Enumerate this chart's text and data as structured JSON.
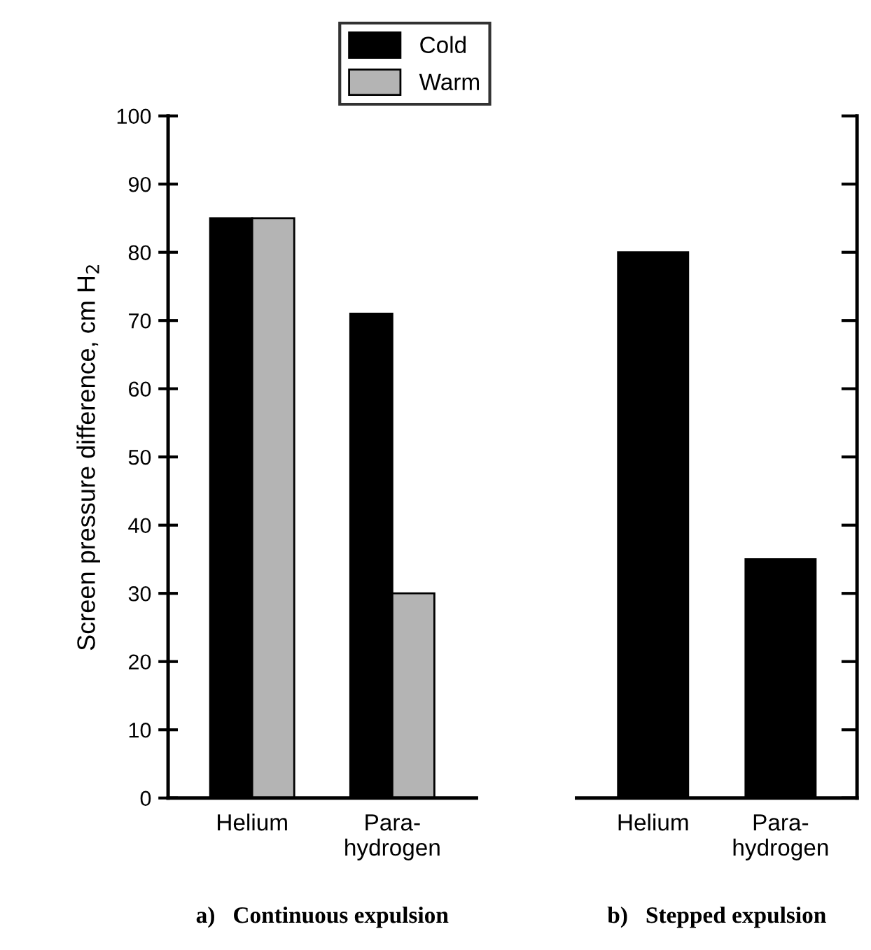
{
  "chart_data": [
    {
      "type": "bar",
      "title": "a)   Continuous expulsion",
      "ylabel": "Screen pressure difference, cm H$_{2}$",
      "categories": [
        "Helium",
        "Para-\nhydrogen"
      ],
      "series": [
        {
          "name": "Cold",
          "color": "#000000",
          "values": [
            85,
            71
          ]
        },
        {
          "name": "Warm",
          "color": "#b4b4b4",
          "values": [
            85,
            30
          ]
        }
      ],
      "ylim": [
        0,
        100
      ],
      "yticks": [
        0,
        10,
        20,
        30,
        40,
        50,
        60,
        70,
        80,
        90,
        100
      ],
      "legend": "top",
      "grid": false
    },
    {
      "type": "bar",
      "title": "b)   Stepped expulsion",
      "categories": [
        "Helium",
        "Para-\nhydrogen"
      ],
      "series": [
        {
          "color": "#000000",
          "values": [
            80,
            35
          ]
        }
      ],
      "ylim": [
        0,
        100
      ],
      "yticks": [
        {
          "value": 0,
          "label": null
        },
        {
          "value": 10,
          "label": null
        },
        {
          "value": 20,
          "label": null
        },
        {
          "value": 30,
          "label": null
        },
        {
          "value": 40,
          "label": null
        },
        {
          "value": 50,
          "label": null
        },
        {
          "value": 60,
          "label": null
        },
        {
          "value": 70,
          "label": null
        },
        {
          "value": 80,
          "label": null
        },
        {
          "value": 90,
          "label": null
        },
        {
          "value": 100,
          "label": null
        }
      ],
      "tick_labels": "x",
      "grid": false
    }
  ]
}
